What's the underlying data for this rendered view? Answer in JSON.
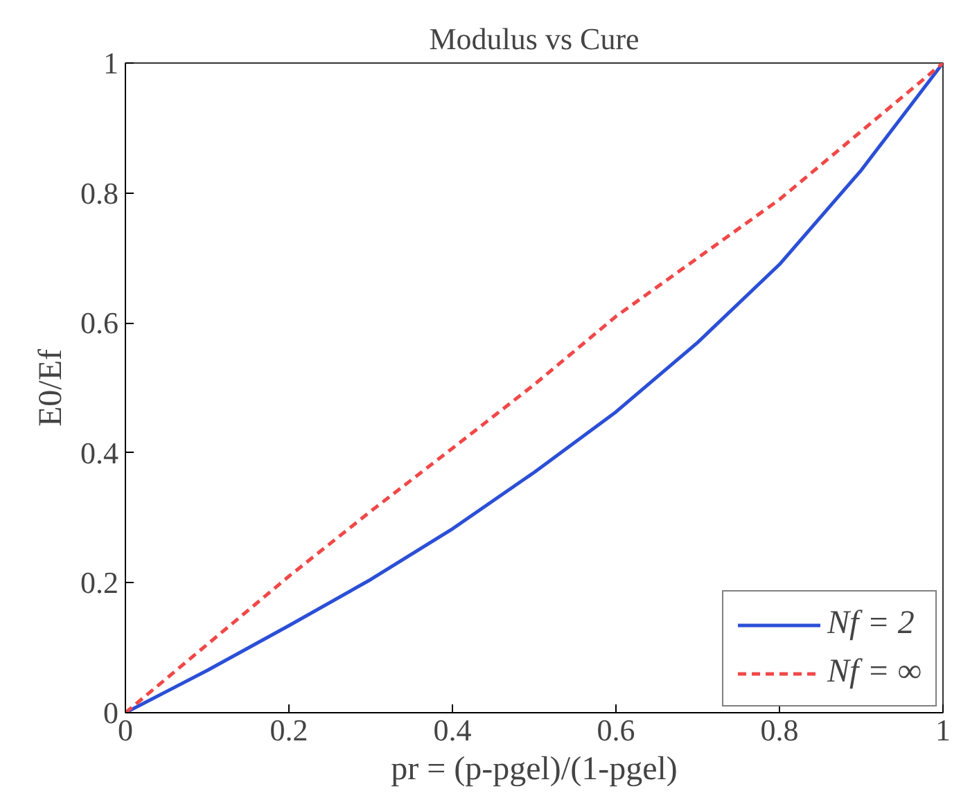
{
  "chart_data": {
    "type": "line",
    "title": "Modulus vs Cure",
    "xlabel": "pr = (p-pgel)/(1-pgel)",
    "ylabel": "E0/Ef",
    "x": [
      0,
      0.1,
      0.2,
      0.3,
      0.4,
      0.5,
      0.6,
      0.7,
      0.8,
      0.9,
      1.0
    ],
    "series": [
      {
        "name": "Nf = 2",
        "color": "#2b4fd6",
        "line_style": "solid",
        "values": [
          0,
          0.065,
          0.134,
          0.205,
          0.283,
          0.37,
          0.463,
          0.57,
          0.69,
          0.835,
          1.0
        ]
      },
      {
        "name": "Nf = ∞",
        "color": "#f04848",
        "line_style": "dashed",
        "values": [
          0,
          0.105,
          0.21,
          0.31,
          0.407,
          0.505,
          0.61,
          0.7,
          0.79,
          0.895,
          1.0
        ]
      }
    ],
    "xlim": [
      0,
      1
    ],
    "ylim": [
      0,
      1
    ],
    "xticks": [
      0,
      0.2,
      0.4,
      0.6,
      0.8,
      1
    ],
    "yticks": [
      0,
      0.2,
      0.4,
      0.6,
      0.8,
      1
    ],
    "grid": false,
    "legend": "bottom right",
    "marker": "none"
  }
}
